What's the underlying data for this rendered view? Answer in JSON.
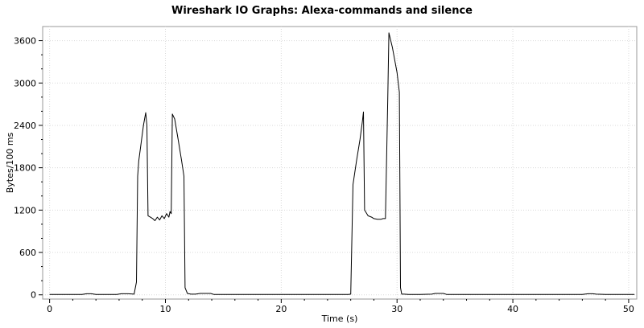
{
  "chart_data": {
    "type": "line",
    "title": "Wireshark IO Graphs: Alexa-commands and silence",
    "xlabel": "Time (s)",
    "ylabel": "Bytes/100 ms",
    "xlim": [
      -0.6,
      50.7
    ],
    "ylim": [
      -60,
      3800
    ],
    "xticks": [
      0,
      10,
      20,
      30,
      40,
      50
    ],
    "yticks": [
      0,
      600,
      1200,
      1800,
      2400,
      3000,
      3600
    ],
    "grid": true,
    "legend": "none",
    "line_color": "#000000",
    "grid_color": "#d9d9d9",
    "series": [
      {
        "x": [
          0,
          1,
          2,
          2.8,
          3.2,
          3.6,
          4,
          5,
          5.8,
          6.2,
          6.8,
          7.3,
          7.5,
          7.6,
          7.7,
          7.9,
          8.1,
          8.3,
          8.4,
          8.5,
          8.7,
          8.9,
          9.1,
          9.3,
          9.5,
          9.7,
          9.9,
          10.1,
          10.3,
          10.4,
          10.5,
          10.6,
          10.8,
          11.1,
          11.4,
          11.6,
          11.7,
          11.9,
          12.2,
          12.6,
          13,
          13.2,
          13.9,
          14.2,
          15,
          16,
          20,
          24,
          25,
          25.8,
          26,
          26.2,
          26.5,
          26.8,
          27,
          27.1,
          27.2,
          27.5,
          27.8,
          28,
          28.3,
          28.6,
          28.8,
          29,
          29.2,
          29.3,
          29.6,
          30,
          30.2,
          30.3,
          30.4,
          30.6,
          31,
          32,
          33,
          33.3,
          34,
          34.3,
          35,
          40,
          45,
          45.8,
          46,
          46.5,
          46.9,
          47.2,
          48,
          50,
          50.5
        ],
        "y": [
          5,
          5,
          5,
          5,
          15,
          15,
          5,
          5,
          5,
          15,
          15,
          10,
          180,
          1680,
          1900,
          2150,
          2400,
          2580,
          2400,
          1120,
          1100,
          1080,
          1050,
          1100,
          1060,
          1120,
          1080,
          1150,
          1100,
          1180,
          1150,
          2560,
          2490,
          2200,
          1900,
          1680,
          100,
          20,
          10,
          10,
          20,
          20,
          20,
          5,
          5,
          5,
          5,
          5,
          5,
          5,
          10,
          1560,
          1900,
          2200,
          2450,
          2590,
          1200,
          1120,
          1100,
          1080,
          1070,
          1070,
          1080,
          1080,
          2780,
          3710,
          3500,
          3150,
          2870,
          100,
          10,
          10,
          5,
          5,
          10,
          20,
          20,
          5,
          5,
          5,
          5,
          5,
          5,
          15,
          15,
          10,
          5,
          5,
          5
        ]
      }
    ]
  }
}
